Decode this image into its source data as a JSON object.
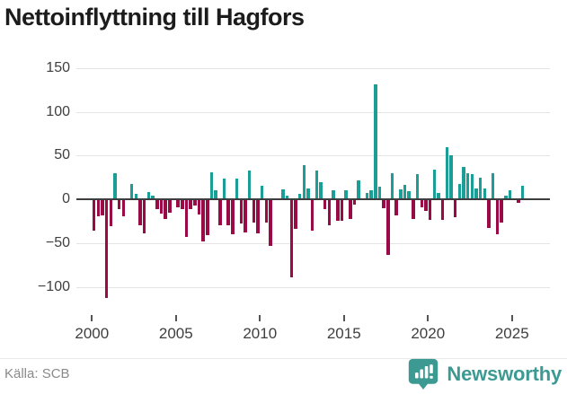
{
  "title": "Nettoinflyttning till Hagfors",
  "source": "Källa: SCB",
  "brand": {
    "name": "Newsworthy",
    "color": "#3c9a93"
  },
  "colors": {
    "positive": "#1a9e96",
    "negative": "#990a46",
    "zero_line": "#3d3d3d",
    "gridline": "#e4e4e4",
    "axis_text": "#3f3f3f"
  },
  "chart_data": {
    "type": "bar",
    "title": "Nettoinflyttning till Hagfors",
    "frequency": "quarterly",
    "x_start": "2000 Q1",
    "x_end": "2025 Q3",
    "xticks": [
      2000,
      2005,
      2010,
      2015,
      2020,
      2025
    ],
    "yticks": [
      150,
      100,
      50,
      0,
      -50,
      -100
    ],
    "ylim": [
      -131,
      155
    ],
    "grid": true,
    "legend": "none",
    "positive_color": "#1a9e96",
    "negative_color": "#990a46",
    "values": [
      -35,
      -18,
      -17,
      -112,
      -30,
      30,
      -10,
      -18,
      0,
      18,
      6,
      -28,
      -38,
      8,
      4,
      -10,
      -15,
      -21,
      -14,
      0,
      -8,
      -10,
      -42,
      -10,
      -6,
      -16,
      -47,
      -40,
      31,
      10,
      -28,
      24,
      -28,
      -39,
      24,
      -26,
      -37,
      33,
      -25,
      -38,
      16,
      -25,
      -52,
      0,
      0,
      12,
      4,
      -88,
      -33,
      6,
      39,
      13,
      -35,
      33,
      20,
      -10,
      -28,
      10,
      -23,
      -23,
      10,
      -21,
      -5,
      22,
      0,
      7,
      10,
      131,
      15,
      -9,
      -62,
      30,
      -17,
      12,
      17,
      9,
      -21,
      29,
      -8,
      -12,
      -22,
      34,
      7,
      -22,
      60,
      50,
      -19,
      18,
      37,
      30,
      29,
      13,
      25,
      13,
      -32,
      30,
      -39,
      -25,
      4,
      10,
      0,
      -3,
      16
    ]
  }
}
